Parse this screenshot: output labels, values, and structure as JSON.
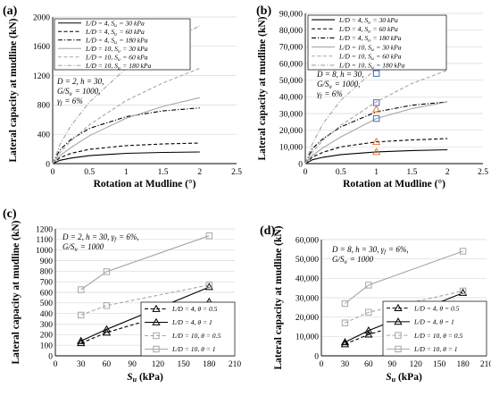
{
  "chart_data": [
    {
      "panel": "(a)",
      "type": "line",
      "xlabel": "Rotation at Mudline (°)",
      "ylabel": "Lateral capacity at mudline (kN)",
      "xlim": [
        0,
        2.5
      ],
      "ylim": [
        0,
        2000
      ],
      "x_ticks": [
        "0",
        "0.5",
        "1",
        "1.5",
        "2",
        "2.5"
      ],
      "y_ticks": [
        "0",
        "400",
        "800",
        "1200",
        "1600",
        "2000"
      ],
      "legend_position": "top-left",
      "annotation": [
        "D = 2, h = 30,",
        "G/Su = 1000,",
        "γf = 6%"
      ],
      "series": [
        {
          "name": "L/D = 4, Su = 30 kPa",
          "color": "#000000",
          "dash": "solid",
          "x": [
            0,
            0.1,
            0.25,
            0.5,
            1,
            1.5,
            2
          ],
          "y": [
            0,
            45,
            75,
            108,
            140,
            152,
            158
          ]
        },
        {
          "name": "L/D = 4, Su = 60 kPa",
          "color": "#000000",
          "dash": "dashed",
          "x": [
            0,
            0.1,
            0.25,
            0.5,
            1,
            1.5,
            2
          ],
          "y": [
            0,
            80,
            140,
            195,
            245,
            268,
            280
          ]
        },
        {
          "name": "L/D = 4, Su = 180 kPa",
          "color": "#000000",
          "dash": "dashdot",
          "x": [
            0,
            0.1,
            0.25,
            0.5,
            1,
            1.5,
            2
          ],
          "y": [
            0,
            190,
            330,
            480,
            640,
            720,
            760
          ]
        },
        {
          "name": "L/D = 10, Su = 30 kPa",
          "color": "#a6a6a6",
          "dash": "solid",
          "x": [
            0,
            0.1,
            0.25,
            0.5,
            1,
            1.5,
            2
          ],
          "y": [
            0,
            110,
            220,
            380,
            620,
            780,
            900
          ]
        },
        {
          "name": "L/D = 10, Su = 60 kPa",
          "color": "#a6a6a6",
          "dash": "dashed",
          "x": [
            0,
            0.1,
            0.25,
            0.5,
            1,
            1.5,
            2
          ],
          "y": [
            0,
            150,
            310,
            530,
            860,
            1100,
            1300
          ]
        },
        {
          "name": "L/D = 10, Su = 180 kPa",
          "color": "#a6a6a6",
          "dash": "dashdot",
          "x": [
            0,
            0.1,
            0.25,
            0.5,
            1,
            1.5,
            2
          ],
          "y": [
            0,
            260,
            520,
            840,
            1300,
            1620,
            1880
          ]
        }
      ]
    },
    {
      "panel": "(b)",
      "type": "line",
      "xlabel": "Rotation at Mudline (°)",
      "ylabel": "Lateral capacity at mudline (kN)",
      "xlim": [
        0,
        2.5
      ],
      "ylim": [
        0,
        90000
      ],
      "x_ticks": [
        "0",
        "0.5",
        "1",
        "1.5",
        "2",
        "2.5"
      ],
      "y_ticks": [
        "0",
        "10,000",
        "20,000",
        "30,000",
        "40,000",
        "50,000",
        "60,000",
        "70,000",
        "80,000",
        "90,000"
      ],
      "legend_position": "top-left",
      "annotation": [
        "D = 8, h = 30,",
        "G/Su = 1000,",
        "γf = 6%"
      ],
      "series": [
        {
          "name": "L/D = 4, Su = 30 kPa",
          "color": "#000000",
          "dash": "solid",
          "x": [
            0,
            0.1,
            0.25,
            0.5,
            1,
            1.5,
            2
          ],
          "y": [
            0,
            2300,
            3800,
            5400,
            7000,
            7800,
            8300
          ]
        },
        {
          "name": "L/D = 4, Su = 60 kPa",
          "color": "#000000",
          "dash": "dashed",
          "x": [
            0,
            0.1,
            0.25,
            0.5,
            1,
            1.5,
            2
          ],
          "y": [
            0,
            4000,
            6800,
            10000,
            13000,
            14200,
            15000
          ]
        },
        {
          "name": "L/D = 4, Su = 180 kPa",
          "color": "#000000",
          "dash": "dashdot",
          "x": [
            0,
            0.1,
            0.25,
            0.5,
            1,
            1.5,
            2
          ],
          "y": [
            0,
            9000,
            15000,
            22000,
            31000,
            35000,
            37000
          ]
        },
        {
          "name": "L/D = 10, Su = 30 kPa",
          "color": "#a6a6a6",
          "dash": "solid",
          "x": [
            0,
            0.1,
            0.25,
            0.5,
            1,
            1.5,
            2
          ],
          "y": [
            0,
            5000,
            9500,
            16000,
            27000,
            33000,
            37000
          ]
        },
        {
          "name": "L/D = 10, Su = 60 kPa",
          "color": "#a6a6a6",
          "dash": "dashed",
          "x": [
            0,
            0.1,
            0.25,
            0.5,
            1,
            1.5,
            2
          ],
          "y": [
            0,
            7000,
            14000,
            23000,
            37000,
            48000,
            56000
          ]
        },
        {
          "name": "L/D = 10, Su = 180 kPa",
          "color": "#a6a6a6",
          "dash": "dashdot",
          "x": [
            0,
            0.1,
            0.25,
            0.5,
            1,
            1.5,
            2
          ],
          "y": [
            0,
            12000,
            24000,
            38000,
            57000,
            72000,
            85000
          ]
        }
      ],
      "markers": [
        {
          "shape": "triangle",
          "color": "#e07b3f",
          "x": 1,
          "y": 7000
        },
        {
          "shape": "triangle",
          "color": "#e07b3f",
          "x": 1,
          "y": 13000
        },
        {
          "shape": "triangle",
          "color": "#e07b3f",
          "x": 1,
          "y": 32500
        },
        {
          "shape": "square",
          "color": "#3f6fb6",
          "x": 1,
          "y": 27000
        },
        {
          "shape": "square",
          "color": "#3f6fb6",
          "x": 1,
          "y": 36500
        },
        {
          "shape": "square",
          "color": "#3f6fb6",
          "x": 1,
          "y": 54000
        }
      ]
    },
    {
      "panel": "(c)",
      "type": "line",
      "xlabel": "Su (kPa)",
      "ylabel": "Lateral capacity at mudline (kN)",
      "xlim": [
        0,
        210
      ],
      "ylim": [
        0,
        1200
      ],
      "x_ticks": [
        "0",
        "30",
        "60",
        "90",
        "120",
        "150",
        "180",
        "210"
      ],
      "y_ticks": [
        "0",
        "100",
        "200",
        "300",
        "400",
        "500",
        "600",
        "700",
        "800",
        "900",
        "1000",
        "1100",
        "1200"
      ],
      "legend_position": "bottom-right",
      "annotation": [
        "D = 2, h = 30, γf = 6%,",
        "G/Su = 1000"
      ],
      "series": [
        {
          "name": "L/D = 4, θ = 0.5",
          "color": "#000000",
          "dash": "dashed",
          "marker": "triangle",
          "x": [
            30,
            60,
            180
          ],
          "y": [
            120,
            220,
            510
          ]
        },
        {
          "name": "L/D = 4, θ = 1",
          "color": "#000000",
          "dash": "solid",
          "marker": "triangle",
          "x": [
            30,
            60,
            180
          ],
          "y": [
            140,
            250,
            650
          ]
        },
        {
          "name": "L/D = 10, θ = 0.5",
          "color": "#a6a6a6",
          "dash": "dashed",
          "marker": "square",
          "x": [
            30,
            60,
            180
          ],
          "y": [
            385,
            475,
            670
          ]
        },
        {
          "name": "L/D = 10, θ = 1",
          "color": "#a6a6a6",
          "dash": "solid",
          "marker": "square",
          "x": [
            30,
            60,
            180
          ],
          "y": [
            625,
            795,
            1135
          ]
        }
      ]
    },
    {
      "panel": "(d)",
      "type": "line",
      "xlabel": "Su (kPa)",
      "ylabel": "Lateral capacity at mudline (kN)",
      "xlim": [
        0,
        210
      ],
      "ylim": [
        0,
        60000
      ],
      "x_ticks": [
        "0",
        "30",
        "60",
        "90",
        "120",
        "150",
        "180",
        "210"
      ],
      "y_ticks": [
        "0",
        "10,000",
        "20,000",
        "30,000",
        "40,000",
        "50,000",
        "60,000"
      ],
      "legend_position": "bottom-right",
      "annotation": [
        "D = 8, h = 30, γf = 6%,",
        "G/Su = 1000"
      ],
      "series": [
        {
          "name": "L/D = 4, θ = 0.5",
          "color": "#000000",
          "dash": "dashed",
          "marker": "triangle",
          "x": [
            30,
            60,
            180
          ],
          "y": [
            6000,
            11000,
            26000
          ]
        },
        {
          "name": "L/D = 4, θ = 1",
          "color": "#000000",
          "dash": "solid",
          "marker": "triangle",
          "x": [
            30,
            60,
            180
          ],
          "y": [
            7000,
            13000,
            32500
          ]
        },
        {
          "name": "L/D = 10, θ = 0.5",
          "color": "#a6a6a6",
          "dash": "dashed",
          "marker": "square",
          "x": [
            30,
            60,
            180
          ],
          "y": [
            17000,
            22500,
            33500
          ]
        },
        {
          "name": "L/D = 10, θ = 1",
          "color": "#a6a6a6",
          "dash": "solid",
          "marker": "square",
          "x": [
            30,
            60,
            180
          ],
          "y": [
            27000,
            36500,
            54000
          ]
        }
      ]
    }
  ]
}
